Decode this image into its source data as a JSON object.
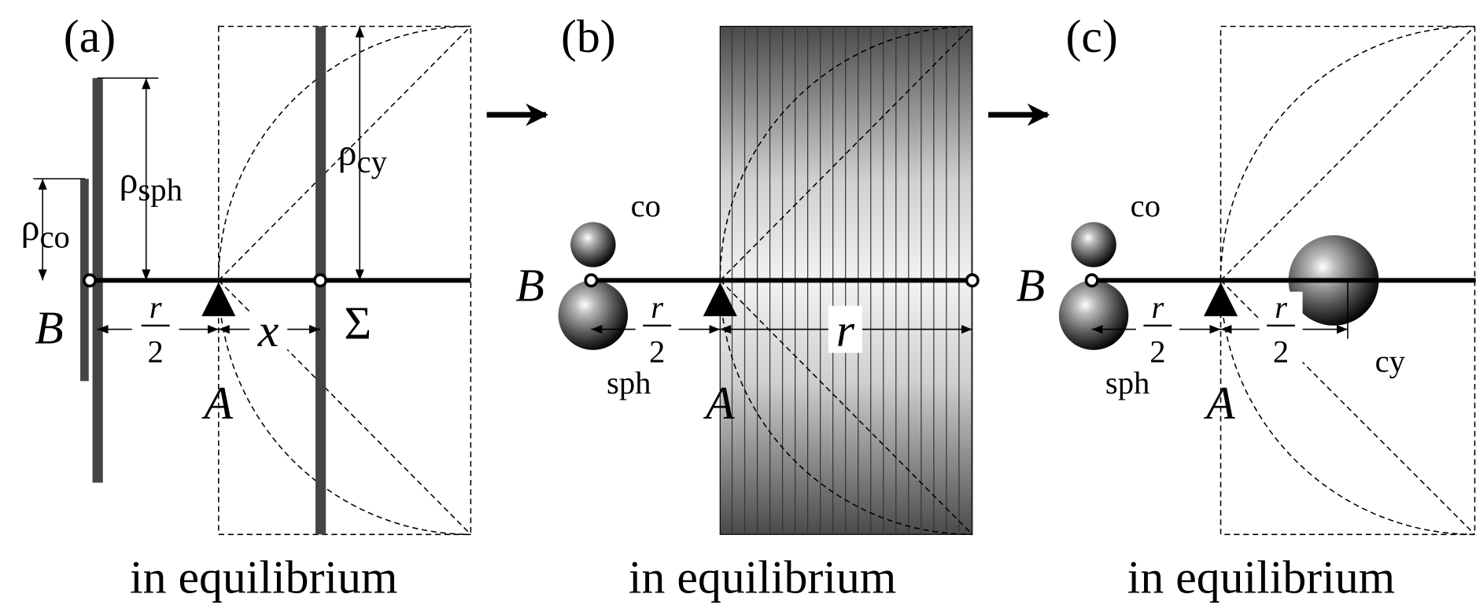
{
  "panels": [
    {
      "label": "(a)",
      "caption": "in equilibrium",
      "rho_sph": {
        "symbol": "ρ",
        "subscript": "sph"
      },
      "rho_co": {
        "symbol": "ρ",
        "subscript": "co"
      },
      "rho_cy": {
        "symbol": "ρ",
        "subscript": "cy"
      },
      "point_B": "B",
      "point_A": "A",
      "half_distance": {
        "numerator": "r",
        "denominator": "2"
      },
      "distance": "x",
      "plane": "Σ"
    },
    {
      "label": "(b)",
      "caption": "in equilibrium",
      "sphere_co": "co",
      "sphere_sph": "sph",
      "point_B": "B",
      "point_A": "A",
      "half_distance": {
        "numerator": "r",
        "denominator": "2"
      },
      "distance": "r"
    },
    {
      "label": "(c)",
      "caption": "in equilibrium",
      "sphere_co": "co",
      "sphere_sph": "sph",
      "sphere_cy": "cy",
      "point_B": "B",
      "point_A": "A",
      "half_distance_left": {
        "numerator": "r",
        "denominator": "2"
      },
      "half_distance_right": {
        "numerator": "r",
        "denominator": "2"
      }
    }
  ]
}
